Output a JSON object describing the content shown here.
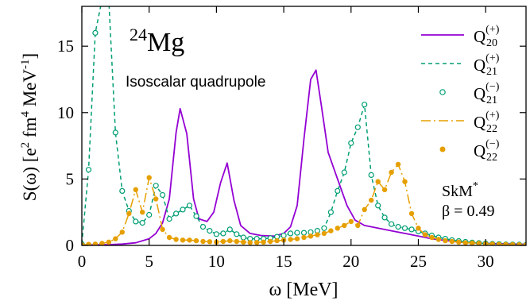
{
  "chart_data": {
    "type": "line",
    "title": "",
    "xlabel": "ω [MeV]",
    "ylabel_parts": {
      "main": "S(ω) [e",
      "sup1": "2",
      "mid1": " fm",
      "sup2": "4",
      "mid2": " MeV",
      "sup3": "-1",
      "tail": "]"
    },
    "xlim": [
      0,
      33
    ],
    "ylim": [
      0,
      18
    ],
    "x_ticks": [
      0,
      5,
      10,
      15,
      20,
      25,
      30
    ],
    "y_ticks": [
      0,
      5,
      10,
      15
    ],
    "grid": false,
    "legend_position": "top-right",
    "annotations": {
      "nucleus_mass": "24",
      "nucleus_symbol": "Mg",
      "mode": "Isoscalar quadrupole",
      "force": "SkM",
      "force_sup": "*",
      "deformation": "β = 0.49"
    },
    "colors": {
      "purple": "#9400d3",
      "teal": "#009e73",
      "orange": "#e69f00"
    },
    "series": [
      {
        "key": "q20p",
        "legend": {
          "base": "Q",
          "sub": "20",
          "sup": "(+)"
        },
        "style": "solid",
        "color": "#9400d3",
        "x": [
          0,
          1,
          2,
          3,
          4,
          5,
          5.5,
          6,
          6.5,
          7,
          7.3,
          7.8,
          8.3,
          8.7,
          9.3,
          9.8,
          10.3,
          10.8,
          11.3,
          11.8,
          12.5,
          13.3,
          14.3,
          15,
          15.5,
          16,
          16.5,
          17,
          17.4,
          17.8,
          18.3,
          19,
          19.7,
          20.3,
          21,
          22,
          23,
          24,
          26,
          28,
          30,
          33
        ],
        "y": [
          0.02,
          0.04,
          0.06,
          0.1,
          0.2,
          0.5,
          0.9,
          1.7,
          3.5,
          8.5,
          10.3,
          8.4,
          3.5,
          2.0,
          1.8,
          2.5,
          4.7,
          6.2,
          3.4,
          1.5,
          0.9,
          0.75,
          0.7,
          0.9,
          1.4,
          3.0,
          8.0,
          12.5,
          13.2,
          10.5,
          7.0,
          5.0,
          3.0,
          1.9,
          1.5,
          1.3,
          1.1,
          0.9,
          0.5,
          0.25,
          0.15,
          0.08
        ]
      },
      {
        "key": "q21p",
        "legend": {
          "base": "Q",
          "sub": "21",
          "sup": "(+)"
        },
        "style": "dashed",
        "color": "#009e73",
        "x": [
          0,
          0.5,
          1.0,
          1.5,
          2.0,
          2.5,
          3.0,
          3.5,
          4.0,
          4.5,
          5.0,
          5.5,
          6.0,
          6.5,
          7.0,
          7.5,
          8.0,
          8.5,
          9.0,
          9.5,
          10.0,
          10.5,
          11.0,
          11.5,
          12.0,
          12.5,
          13.0,
          13.5,
          14.0,
          14.5,
          15.0,
          15.5,
          16.0,
          16.5,
          17.0,
          17.5,
          18.0,
          18.5,
          19.0,
          19.5,
          20.0,
          20.5,
          21.0,
          21.5,
          22.0,
          22.5,
          23.0,
          23.5,
          24.0,
          24.5,
          25.0,
          25.5,
          26.0,
          26.5,
          27.0,
          27.5,
          28.0,
          28.5,
          29.0,
          29.5,
          30.0,
          30.5,
          31.0,
          31.5,
          32.0,
          32.5,
          33.0
        ],
        "y": [
          0.1,
          5.7,
          16,
          18.5,
          18.5,
          8.5,
          4.1,
          2.6,
          1.8,
          1.7,
          2.3,
          4.5,
          3.8,
          2.0,
          2.4,
          2.7,
          3.0,
          2.2,
          1.4,
          1.1,
          0.85,
          0.9,
          1.2,
          0.85,
          0.6,
          0.5,
          0.5,
          0.5,
          0.55,
          0.65,
          0.75,
          0.9,
          0.95,
          0.95,
          1.0,
          1.1,
          1.3,
          2.5,
          4.1,
          5.5,
          7.7,
          8.9,
          10.6,
          5.3,
          3.0,
          2.1,
          1.6,
          1.4,
          1.3,
          1.2,
          1.05,
          0.9,
          0.75,
          0.6,
          0.5,
          0.4,
          0.33,
          0.27,
          0.22,
          0.18,
          0.15,
          0.12,
          0.1,
          0.08,
          0.07,
          0.06,
          0.05
        ]
      },
      {
        "key": "q21m",
        "legend": {
          "base": "Q",
          "sub": "21",
          "sup": "(−)"
        },
        "style": "open-circles",
        "color": "#009e73",
        "same_as": "q21p"
      },
      {
        "key": "q22p",
        "legend": {
          "base": "Q",
          "sub": "22",
          "sup": "(+)"
        },
        "style": "dashdot",
        "color": "#e69f00",
        "x": [
          0,
          0.5,
          1.0,
          1.5,
          2.0,
          2.5,
          3.0,
          3.5,
          4.0,
          4.5,
          5.0,
          5.5,
          6.0,
          6.5,
          7.0,
          7.5,
          8.0,
          8.5,
          9.0,
          9.5,
          10.0,
          10.5,
          11.0,
          11.5,
          12.0,
          12.5,
          13.0,
          13.5,
          14.0,
          14.5,
          15.0,
          15.5,
          16.0,
          16.5,
          17.0,
          17.5,
          18.0,
          18.5,
          19.0,
          19.5,
          20.0,
          20.5,
          21.0,
          21.5,
          22.0,
          22.5,
          23.0,
          23.5,
          24.0,
          24.5,
          25.0,
          25.5,
          26.0,
          26.5,
          27.0,
          27.5,
          28.0,
          28.5,
          29.0,
          29.5,
          30.0,
          30.5,
          31.0,
          31.5,
          32.0,
          32.5,
          33.0
        ],
        "y": [
          0.05,
          0.08,
          0.1,
          0.15,
          0.25,
          0.5,
          1.0,
          2.4,
          4.2,
          2.5,
          5.1,
          3.5,
          1.2,
          0.6,
          0.45,
          0.4,
          0.4,
          0.35,
          0.3,
          0.28,
          0.25,
          0.3,
          0.35,
          0.3,
          0.25,
          0.22,
          0.22,
          0.25,
          0.3,
          0.35,
          0.4,
          0.45,
          0.5,
          0.6,
          0.7,
          0.8,
          0.9,
          1.1,
          1.3,
          1.5,
          1.8,
          1.5,
          2.7,
          3.4,
          4.8,
          4.2,
          5.5,
          6.1,
          4.8,
          2.4,
          1.3,
          0.8,
          0.6,
          0.45,
          0.35,
          0.3,
          0.25,
          0.2,
          0.18,
          0.15,
          0.12,
          0.1,
          0.08,
          0.07,
          0.06,
          0.05,
          0.04
        ]
      },
      {
        "key": "q22m",
        "legend": {
          "base": "Q",
          "sub": "22",
          "sup": "(−)"
        },
        "style": "filled-circles",
        "color": "#e69f00",
        "same_as": "q22p"
      }
    ]
  }
}
